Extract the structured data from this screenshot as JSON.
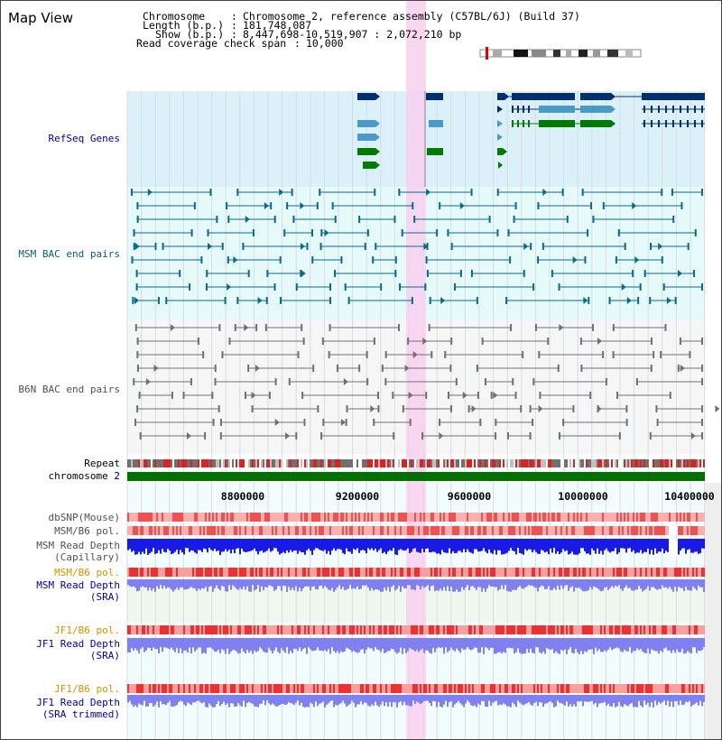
{
  "page_title": "Map View",
  "info": {
    "chromosome_label": "Chromosome",
    "chromosome_value": "Chromosome 2, reference assembly (C57BL/6J) (Build 37)",
    "length_label": "Length (b.p.)",
    "length_value": "181,748,087",
    "show_label": "Show (b.p.)",
    "show_value": "8,447,698-10,519,907 : 2,072,210 bp",
    "coverage_label": "Read coverage check span",
    "coverage_value": "10,000"
  },
  "tracks": {
    "refseq": "RefSeq Genes",
    "msm_bac": "MSM BAC end pairs",
    "b6n_bac": "B6N BAC end pairs",
    "repeat": "Repeat",
    "chromosome": "chromosome 2",
    "dbsnp": "dbSNP(Mouse)",
    "msm_pol_1": "MSM/B6 pol.",
    "msm_depth_cap_1": "MSM Read Depth",
    "msm_depth_cap_2": "(Capillary)",
    "msm_pol_2": "MSM/B6 pol.",
    "msm_depth_sra_1": "MSM Read Depth",
    "msm_depth_sra_2": "(SRA)",
    "jf1_pol_1": "JF1/B6 pol.",
    "jf1_depth_sra_1": "JF1 Read Depth",
    "jf1_depth_sra_2": "(SRA)",
    "jf1_pol_2": "JF1/B6 pol.",
    "jf1_depth_trim_1": "JF1 Read Depth",
    "jf1_depth_trim_2": "(SRA trimmed)"
  },
  "axis_ticks": [
    "8800000",
    "9200000",
    "9600000",
    "10000000",
    "10400000"
  ],
  "colors": {
    "refseq_bg": "#dcf0fa",
    "msm_bac_bg": "#e6fafa",
    "b6n_bac_bg": "#f6f6f6",
    "highlight": "#f8d0ee",
    "chromosome_bar": "#007000",
    "gene_dark": "#003070",
    "gene_mid": "#4a9ac8",
    "gene_green": "#007a00",
    "msm_pair": "#0a6a8a",
    "b6n_pair": "#707070",
    "depth_dark": "#1a1ae8",
    "depth_light": "#8080f0"
  }
}
